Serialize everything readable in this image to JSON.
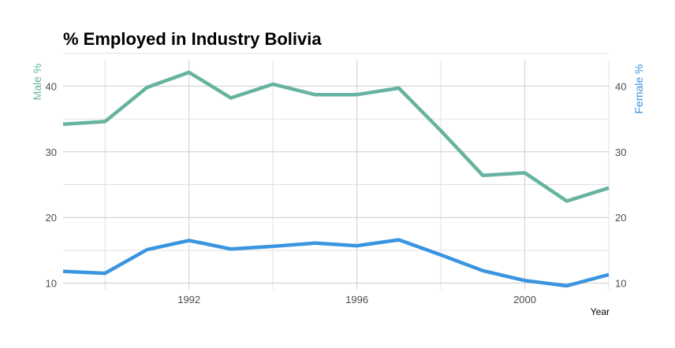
{
  "chart_data": {
    "type": "line",
    "title": "% Employed in Industry Bolivia",
    "xlabel": "Year",
    "ylabel_left": "Male %",
    "ylabel_right": "Female %",
    "xlim": [
      1989,
      2002
    ],
    "ylim": [
      9,
      44
    ],
    "x_ticks": [
      1992,
      1996,
      2000
    ],
    "y_ticks": [
      10,
      20,
      30,
      40
    ],
    "grid": true,
    "legend": "none",
    "colors": {
      "male": "#66b3a0",
      "female": "#3a94e0",
      "left_axis_title": "#66b3a0",
      "right_axis_title": "#3a94e0"
    },
    "x": [
      1989,
      1990,
      1991,
      1992,
      1993,
      1994,
      1995,
      1996,
      1997,
      1998,
      1999,
      2000,
      2001,
      2002
    ],
    "series": [
      {
        "key": "male",
        "values": [
          34.2,
          34.6,
          39.8,
          42.1,
          38.2,
          40.3,
          38.7,
          38.7,
          39.7,
          33.2,
          26.4,
          26.8,
          22.5,
          24.5
        ]
      },
      {
        "key": "female",
        "values": [
          11.8,
          11.5,
          15.1,
          16.5,
          15.2,
          15.6,
          16.1,
          15.7,
          16.6,
          14.3,
          11.9,
          10.4,
          9.6,
          11.3
        ]
      }
    ]
  }
}
